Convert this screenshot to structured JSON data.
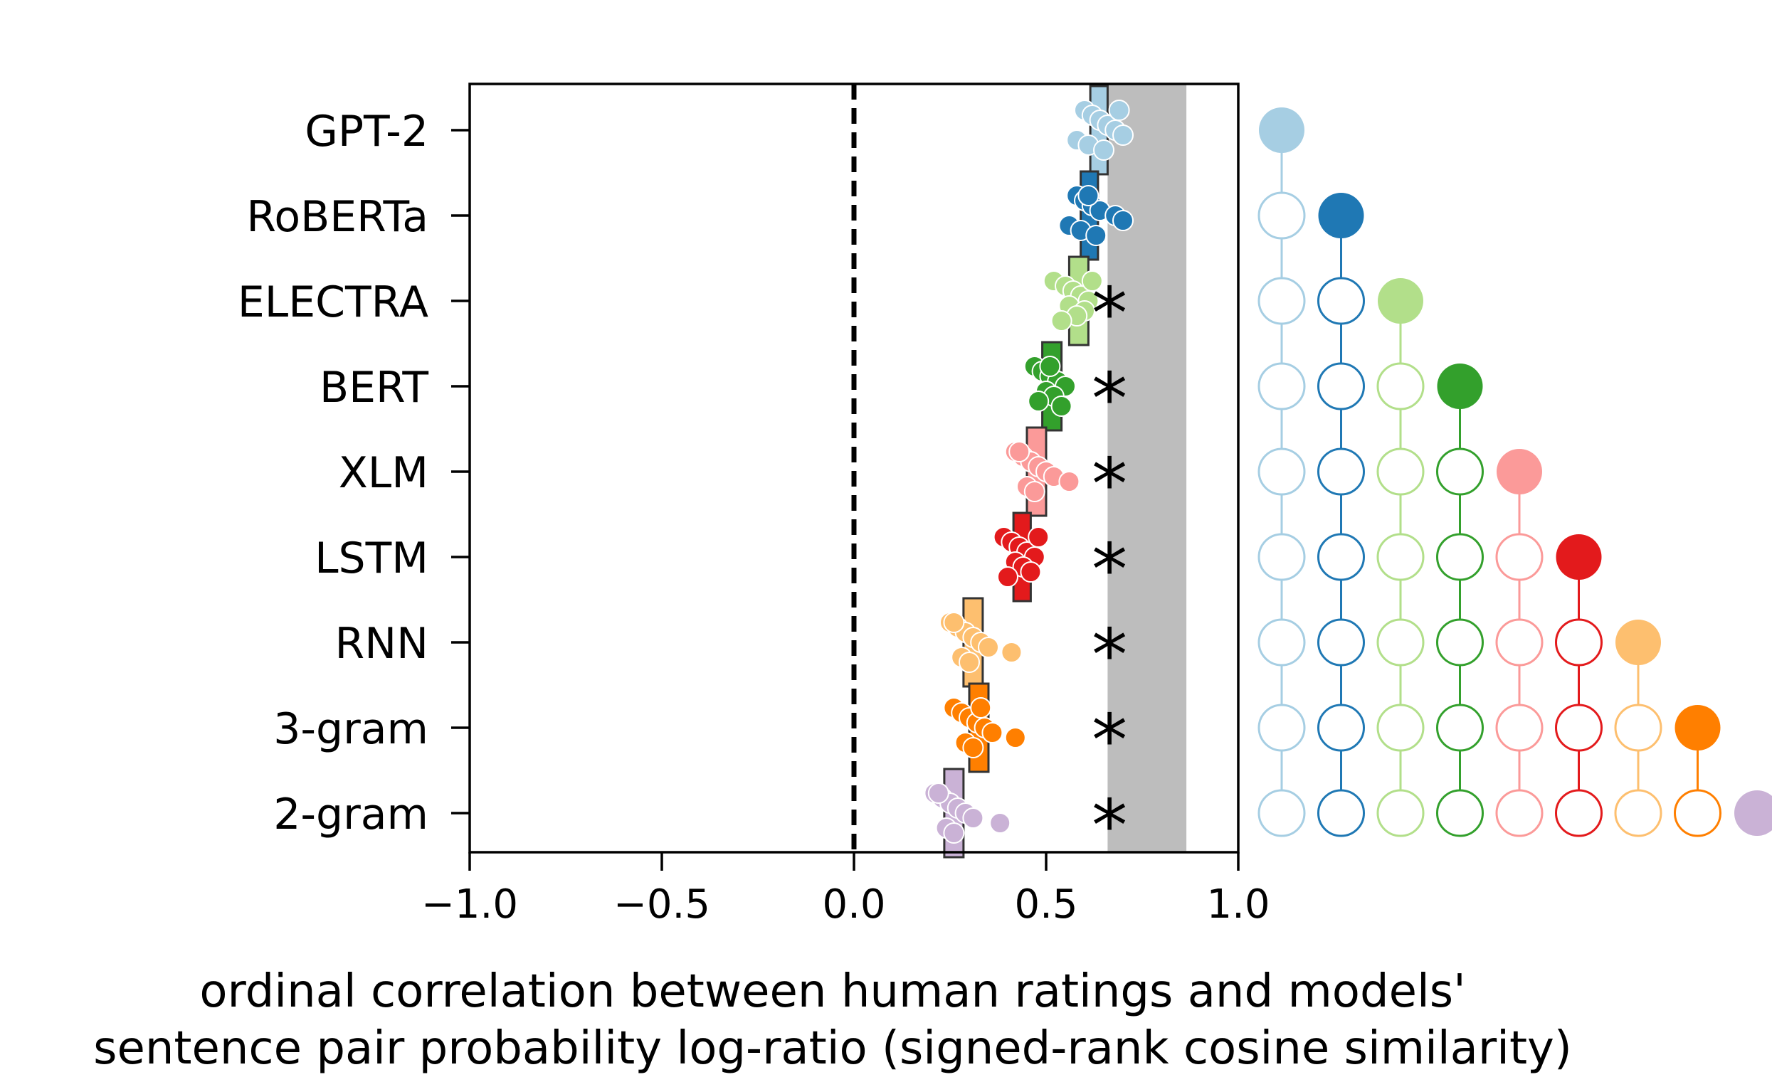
{
  "chart_data": {
    "type": "scatter",
    "xlabel_line1": "ordinal correlation between human ratings and models'",
    "xlabel_line2": "sentence pair probability log-ratio (signed-rank cosine similarity)",
    "xlim": [
      -1.0,
      1.0
    ],
    "xticks": [
      -1.0,
      -0.5,
      0.0,
      0.5,
      1.0
    ],
    "xtick_labels": [
      "−1.0",
      "−0.5",
      "0.0",
      "0.5",
      "1.0"
    ],
    "reference_line_x": 0.0,
    "noise_ceiling": [
      0.66,
      0.865
    ],
    "noise_ceiling_color": "#bdbdbd",
    "significance_marker": "*",
    "grid": false,
    "models": [
      {
        "name": "GPT-2",
        "color": "#a6cee3",
        "mean": 0.64,
        "ci": [
          0.615,
          0.66
        ],
        "significant": false,
        "points": [
          0.6,
          0.62,
          0.64,
          0.66,
          0.68,
          0.7,
          0.58,
          0.61,
          0.65,
          0.69
        ]
      },
      {
        "name": "RoBERTa",
        "color": "#1f78b4",
        "mean": 0.615,
        "ci": [
          0.59,
          0.635
        ],
        "significant": false,
        "points": [
          0.58,
          0.6,
          0.62,
          0.64,
          0.68,
          0.7,
          0.56,
          0.59,
          0.63,
          0.61
        ]
      },
      {
        "name": "ELECTRA",
        "color": "#b2df8a",
        "mean": 0.585,
        "ci": [
          0.56,
          0.61
        ],
        "significant": true,
        "points": [
          0.52,
          0.55,
          0.57,
          0.59,
          0.61,
          0.56,
          0.6,
          0.58,
          0.54,
          0.62
        ]
      },
      {
        "name": "BERT",
        "color": "#33a02c",
        "mean": 0.515,
        "ci": [
          0.49,
          0.54
        ],
        "significant": true,
        "points": [
          0.47,
          0.49,
          0.51,
          0.53,
          0.55,
          0.5,
          0.52,
          0.48,
          0.54,
          0.51
        ]
      },
      {
        "name": "XLM",
        "color": "#fb9a99",
        "mean": 0.475,
        "ci": [
          0.45,
          0.5
        ],
        "significant": true,
        "points": [
          0.42,
          0.44,
          0.46,
          0.48,
          0.5,
          0.52,
          0.56,
          0.45,
          0.47,
          0.43
        ]
      },
      {
        "name": "LSTM",
        "color": "#e31a1c",
        "mean": 0.44,
        "ci": [
          0.415,
          0.46
        ],
        "significant": true,
        "points": [
          0.39,
          0.41,
          0.43,
          0.45,
          0.47,
          0.42,
          0.44,
          0.46,
          0.4,
          0.48
        ]
      },
      {
        "name": "RNN",
        "color": "#fdbf6f",
        "mean": 0.31,
        "ci": [
          0.285,
          0.335
        ],
        "significant": true,
        "points": [
          0.25,
          0.27,
          0.29,
          0.31,
          0.33,
          0.35,
          0.41,
          0.28,
          0.3,
          0.26
        ]
      },
      {
        "name": "3-gram",
        "color": "#ff7f00",
        "mean": 0.325,
        "ci": [
          0.3,
          0.35
        ],
        "significant": true,
        "points": [
          0.26,
          0.28,
          0.3,
          0.32,
          0.34,
          0.36,
          0.42,
          0.29,
          0.31,
          0.33
        ]
      },
      {
        "name": "2-gram",
        "color": "#cab2d6",
        "mean": 0.26,
        "ci": [
          0.235,
          0.285
        ],
        "significant": true,
        "points": [
          0.21,
          0.23,
          0.25,
          0.27,
          0.29,
          0.31,
          0.38,
          0.24,
          0.26,
          0.22
        ]
      }
    ]
  }
}
